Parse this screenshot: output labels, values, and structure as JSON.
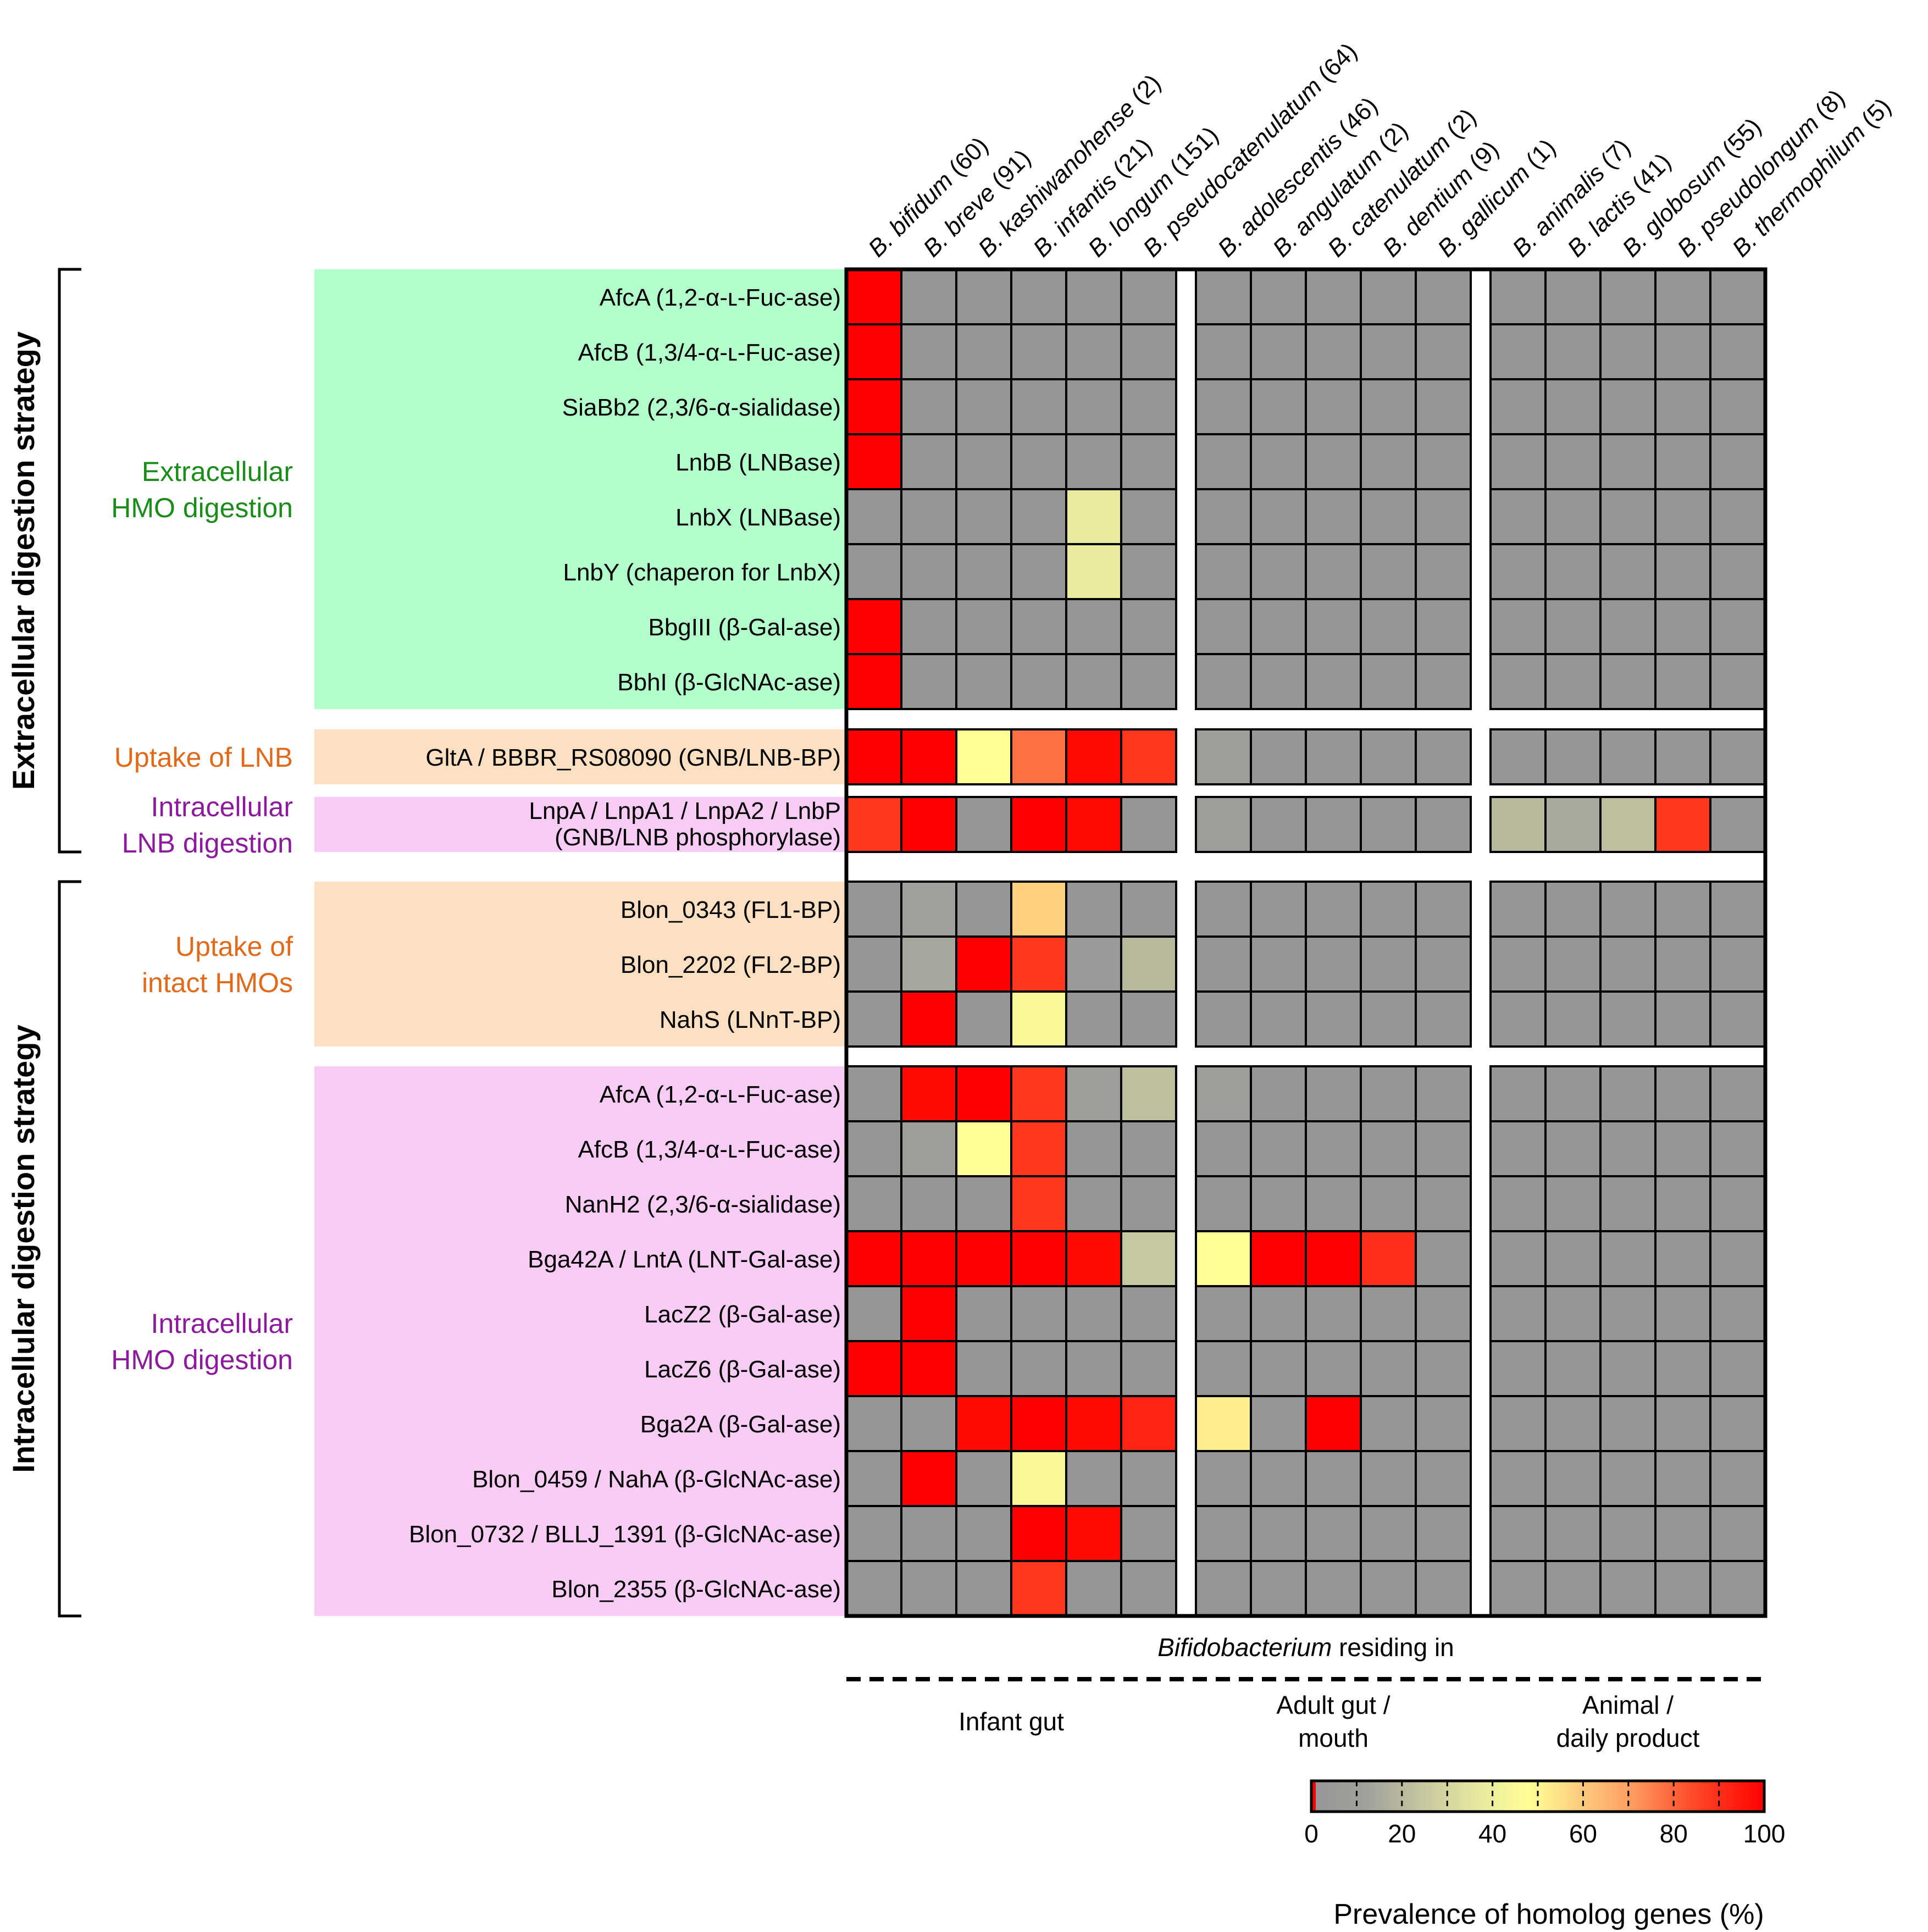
{
  "chart_data": {
    "type": "heatmap",
    "title": "",
    "colorbar": {
      "label": "Prevalence of homolog genes (%)",
      "ticks": [
        "0",
        "20",
        "40",
        "60",
        "80",
        "100"
      ],
      "range": [
        0,
        100
      ]
    },
    "column_groups": [
      {
        "label": "Infant gut",
        "columns": [
          "B. bifidum (60)",
          "B. breve (91)",
          "B. kashiwanohense (2)",
          "B. infantis (21)",
          "B. longum (151)",
          "B. pseudocatenulatum (64)"
        ]
      },
      {
        "label": "Adult gut / mouth",
        "label_lines": [
          "Adult gut /",
          "mouth"
        ],
        "columns": [
          "B. adolescentis (46)",
          "B. angulatum (2)",
          "B. catenulatum (2)",
          "B. dentium (9)",
          "B. gallicum (1)"
        ]
      },
      {
        "label": "Animal / daily product",
        "label_lines": [
          "Animal /",
          "daily product"
        ],
        "columns": [
          "B. animalis (7)",
          "B. lactis (41)",
          "B. globosum (55)",
          "B. pseudolongum (8)",
          "B. thermophilum (5)"
        ]
      }
    ],
    "columns": [
      {
        "species": "B. bifidum",
        "count": "(60)"
      },
      {
        "species": "B. breve",
        "count": "(91)"
      },
      {
        "species": "B. kashiwanohense",
        "count": "(2)"
      },
      {
        "species": "B. infantis",
        "count": "(21)"
      },
      {
        "species": "B. longum",
        "count": "(151)"
      },
      {
        "species": "B. pseudocatenulatum",
        "count": "(64)"
      },
      {
        "species": "B. adolescentis",
        "count": "(46)"
      },
      {
        "species": "B. angulatum",
        "count": "(2)"
      },
      {
        "species": "B. catenulatum",
        "count": "(2)"
      },
      {
        "species": "B. dentium",
        "count": "(9)"
      },
      {
        "species": "B. gallicum",
        "count": "(1)"
      },
      {
        "species": "B. animalis",
        "count": "(7)"
      },
      {
        "species": "B. lactis",
        "count": "(41)"
      },
      {
        "species": "B. globosum",
        "count": "(55)"
      },
      {
        "species": "B. pseudolongum",
        "count": "(8)"
      },
      {
        "species": "B. thermophilum",
        "count": "(5)"
      }
    ],
    "x_axis_label": {
      "italic": "Bifidobacterium",
      "rest": " residing in"
    },
    "strategies": [
      {
        "label": "Extracellular digestion strategy",
        "categories": [
          0,
          1,
          2
        ]
      },
      {
        "label": "Intracellular digestion strategy",
        "categories": [
          3,
          4
        ]
      }
    ],
    "categories": [
      {
        "label_lines": [
          "Extracellular",
          "HMO digestion"
        ],
        "text_color": "#1a8c1a",
        "bg_color": "#b3ffcc",
        "rows": [
          {
            "label": "AfcA (1,2-α-ʟ-Fuc-ase)",
            "values": [
              100,
              0,
              0,
              0,
              0,
              0,
              0,
              0,
              0,
              0,
              0,
              0,
              0,
              0,
              0,
              0
            ]
          },
          {
            "label": "AfcB (1,3/4-α-ʟ-Fuc-ase)",
            "values": [
              100,
              0,
              0,
              0,
              0,
              0,
              0,
              0,
              0,
              0,
              0,
              0,
              0,
              0,
              0,
              0
            ]
          },
          {
            "label": "SiaBb2 (2,3/6-α-sialidase)",
            "values": [
              100,
              0,
              0,
              0,
              0,
              0,
              0,
              0,
              0,
              0,
              0,
              0,
              0,
              0,
              0,
              0
            ]
          },
          {
            "label": "LnbB (LNBase)",
            "values": [
              100,
              0,
              0,
              0,
              0,
              0,
              0,
              0,
              0,
              0,
              0,
              0,
              0,
              0,
              0,
              0
            ]
          },
          {
            "label": "LnbX (LNBase)",
            "values": [
              0,
              0,
              0,
              0,
              38,
              0,
              0,
              0,
              0,
              0,
              0,
              0,
              0,
              0,
              0,
              0
            ]
          },
          {
            "label": "LnbY (chaperon for LnbX)",
            "values": [
              0,
              0,
              0,
              0,
              38,
              0,
              0,
              0,
              0,
              0,
              0,
              0,
              0,
              0,
              0,
              0
            ]
          },
          {
            "label": "BbgIII (β-Gal-ase)",
            "values": [
              100,
              0,
              0,
              0,
              0,
              0,
              0,
              0,
              0,
              0,
              0,
              0,
              0,
              0,
              0,
              0
            ]
          },
          {
            "label": "BbhI (β-GlcNAc-ase)",
            "values": [
              100,
              0,
              0,
              0,
              0,
              0,
              0,
              0,
              0,
              0,
              0,
              0,
              0,
              0,
              0,
              0
            ]
          }
        ]
      },
      {
        "label_lines": [
          "Uptake of LNB"
        ],
        "text_color": "#e06a1a",
        "bg_color": "#fde0c2",
        "rows": [
          {
            "label": "GltA / BBBR_RS08090 (GNB/LNB-BP)",
            "values": [
              100,
              100,
              48,
              78,
              98,
              88,
              8,
              0,
              0,
              0,
              0,
              0,
              0,
              0,
              0,
              0
            ]
          }
        ]
      },
      {
        "label_lines": [
          "Intracellular",
          "LNB digestion"
        ],
        "text_color": "#8c1a9c",
        "bg_color": "#f8ccf5",
        "rows": [
          {
            "label_lines": [
              "LnpA / LnpA1 / LnpA2 / LnbP",
              "(GNB/LNB phosphorylase)"
            ],
            "values": [
              88,
              100,
              0,
              100,
              98,
              0,
              8,
              0,
              0,
              0,
              0,
              20,
              15,
              22,
              88,
              0
            ]
          }
        ]
      },
      {
        "label_lines": [
          "Uptake of",
          "intact HMOs"
        ],
        "text_color": "#e06a1a",
        "bg_color": "#fde0c2",
        "rows": [
          {
            "label": "Blon_0343 (FL1-BP)",
            "values": [
              0,
              12,
              0,
              58,
              0,
              0,
              0,
              0,
              0,
              0,
              0,
              0,
              0,
              0,
              0,
              0
            ]
          },
          {
            "label": "Blon_2202 (FL2-BP)",
            "values": [
              0,
              14,
              100,
              88,
              5,
              20,
              0,
              0,
              0,
              0,
              0,
              0,
              0,
              0,
              0,
              0
            ]
          },
          {
            "label": "NahS (LNnT-BP)",
            "values": [
              0,
              100,
              0,
              45,
              0,
              0,
              0,
              0,
              0,
              0,
              0,
              0,
              0,
              0,
              0,
              0
            ]
          }
        ]
      },
      {
        "label_lines": [
          "Intracellular",
          "HMO digestion"
        ],
        "text_color": "#8c1a9c",
        "bg_color": "#f8ccf5",
        "rows": [
          {
            "label": "AfcA (1,2-α-ʟ-Fuc-ase)",
            "values": [
              0,
              98,
              100,
              88,
              10,
              22,
              8,
              0,
              0,
              0,
              0,
              0,
              0,
              0,
              0,
              0
            ]
          },
          {
            "label": "AfcB (1,3/4-α-ʟ-Fuc-ase)",
            "values": [
              0,
              10,
              48,
              88,
              0,
              0,
              0,
              0,
              0,
              0,
              0,
              0,
              0,
              0,
              0,
              0
            ]
          },
          {
            "label": "NanH2 (2,3/6-α-sialidase)",
            "values": [
              0,
              0,
              0,
              88,
              0,
              0,
              0,
              0,
              0,
              0,
              0,
              0,
              0,
              0,
              0,
              0
            ]
          },
          {
            "label": "Bga42A / LntA (LNT-Gal-ase)",
            "values": [
              100,
              100,
              100,
              100,
              98,
              25,
              48,
              100,
              100,
              90,
              0,
              0,
              0,
              0,
              0,
              0
            ]
          },
          {
            "label": "LacZ2 (β-Gal-ase)",
            "values": [
              0,
              100,
              0,
              0,
              0,
              0,
              0,
              0,
              0,
              0,
              0,
              0,
              0,
              0,
              0,
              0
            ]
          },
          {
            "label": "LacZ6 (β-Gal-ase)",
            "values": [
              100,
              100,
              0,
              0,
              0,
              0,
              0,
              0,
              0,
              0,
              0,
              0,
              0,
              0,
              0,
              0
            ]
          },
          {
            "label": "Bga2A (β-Gal-ase)",
            "values": [
              0,
              0,
              98,
              100,
              98,
              92,
              52,
              0,
              100,
              0,
              0,
              0,
              0,
              0,
              0,
              0
            ]
          },
          {
            "label": "Blon_0459 / NahA (β-GlcNAc-ase)",
            "values": [
              0,
              100,
              0,
              45,
              0,
              0,
              0,
              0,
              0,
              0,
              0,
              0,
              0,
              0,
              0,
              0
            ]
          },
          {
            "label": "Blon_0732 / BLLJ_1391 (β-GlcNAc-ase)",
            "values": [
              0,
              0,
              0,
              100,
              98,
              0,
              0,
              0,
              0,
              0,
              0,
              0,
              0,
              0,
              0,
              0
            ]
          },
          {
            "label": "Blon_2355 (β-GlcNAc-ase)",
            "values": [
              0,
              0,
              0,
              88,
              0,
              0,
              0,
              0,
              0,
              0,
              0,
              0,
              0,
              0,
              0,
              0
            ]
          }
        ]
      }
    ]
  }
}
